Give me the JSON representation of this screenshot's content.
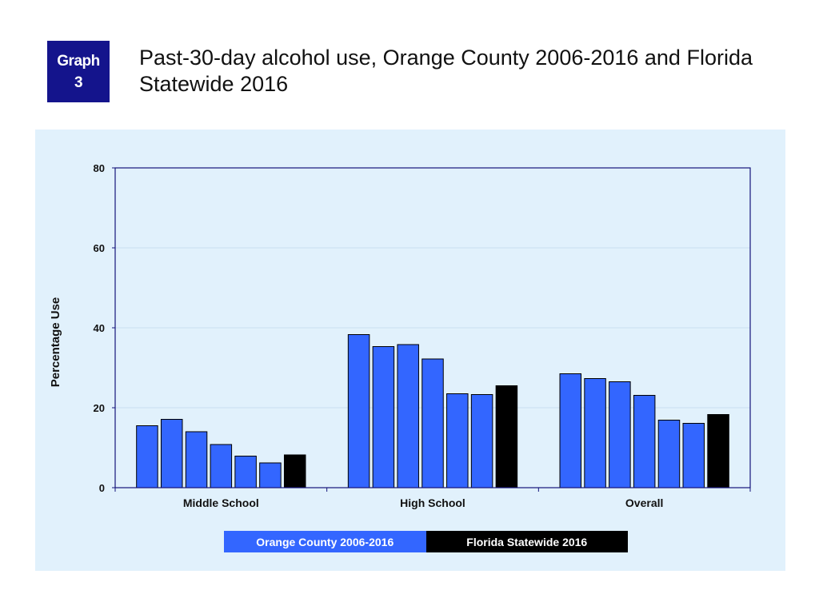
{
  "badge": {
    "line1": "Graph",
    "line2": "3"
  },
  "title_line1": "Past-30-day alcohol use, Orange County 2006-2016 and Florida",
  "title_line2": "Statewide 2016",
  "colors": {
    "orange_county": "#3366ff",
    "florida": "#000000",
    "badge": "#14148c",
    "panel": "#e1f1fc",
    "axis": "#14147a"
  },
  "legend": {
    "orange_county": "Orange County 2006-2016",
    "florida": "Florida Statewide 2016"
  },
  "chart_data": {
    "type": "bar",
    "ylabel": "Percentage Use",
    "xlabel": "",
    "ylim": [
      0,
      80
    ],
    "yticks": [
      0,
      20,
      40,
      60,
      80
    ],
    "grid": true,
    "legend_position": "bottom",
    "categories": [
      "Middle School",
      "High School",
      "Overall"
    ],
    "series": [
      {
        "group": "orange_county",
        "values": [
          15.5,
          38.3,
          28.5
        ]
      },
      {
        "group": "orange_county",
        "values": [
          17.1,
          35.3,
          27.3
        ]
      },
      {
        "group": "orange_county",
        "values": [
          14.0,
          35.8,
          26.5
        ]
      },
      {
        "group": "orange_county",
        "values": [
          10.8,
          32.2,
          23.1
        ]
      },
      {
        "group": "orange_county",
        "values": [
          7.9,
          23.5,
          16.9
        ]
      },
      {
        "group": "orange_county",
        "values": [
          6.2,
          23.3,
          16.1
        ]
      },
      {
        "group": "florida",
        "values": [
          8.2,
          25.5,
          18.3
        ]
      }
    ]
  }
}
